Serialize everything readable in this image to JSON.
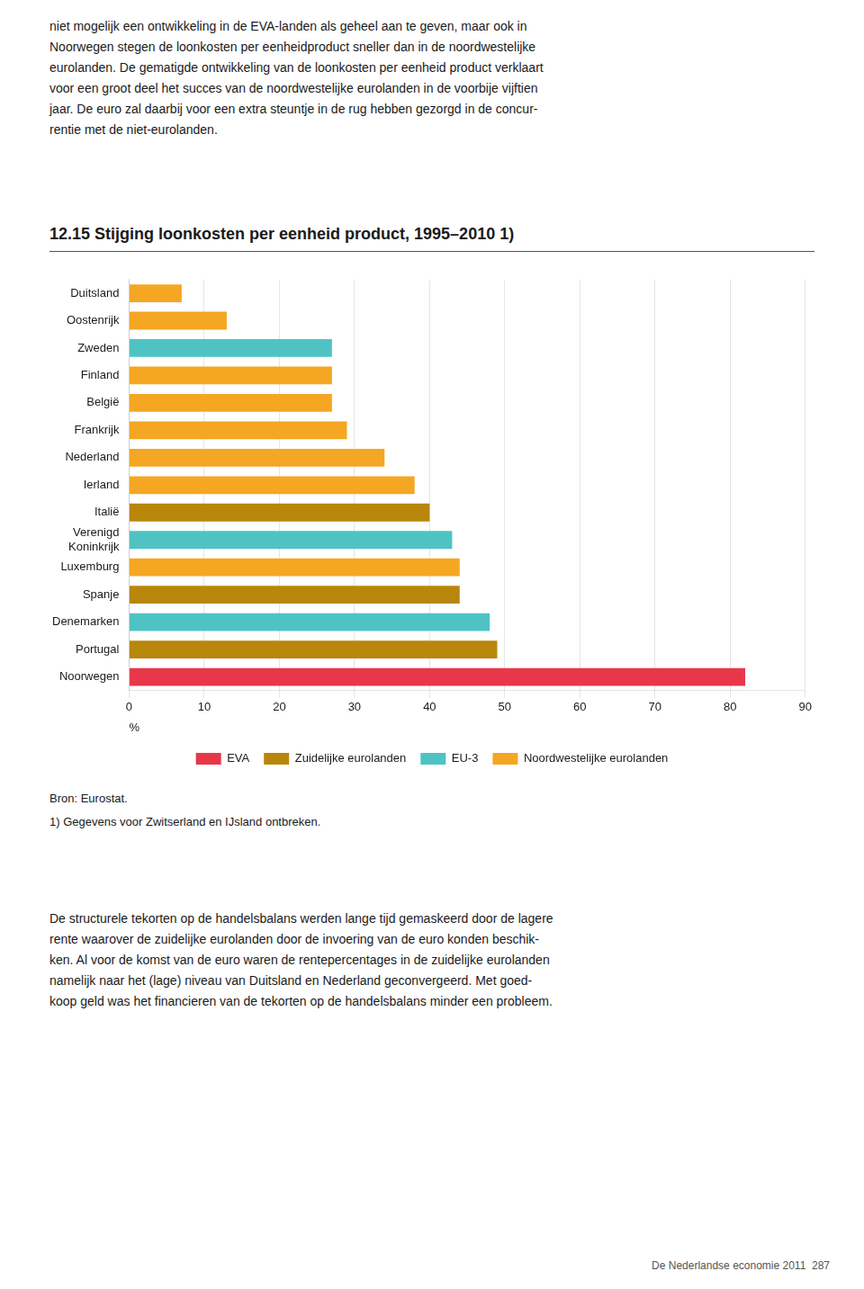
{
  "chart_data": {
    "type": "bar",
    "orientation": "horizontal",
    "title": "12.15 Stijging loonkosten per eenheid product, 1995–2010 1)",
    "categories": [
      "Duitsland",
      "Oostenrijk",
      "Zweden",
      "Finland",
      "België",
      "Frankrijk",
      "Nederland",
      "Ierland",
      "Italië",
      "Verenigd\nKoninkrijk",
      "Luxemburg",
      "Spanje",
      "Denemarken",
      "Portugal",
      "Noorwegen"
    ],
    "series": [
      {
        "name": "EVA",
        "color": "#e8374a",
        "values": [
          null,
          null,
          null,
          null,
          null,
          null,
          null,
          null,
          null,
          null,
          null,
          null,
          null,
          null,
          82
        ]
      },
      {
        "name": "Zuidelijke eurolanden",
        "color": "#b8860b",
        "values": [
          null,
          null,
          null,
          null,
          null,
          null,
          null,
          null,
          40,
          null,
          null,
          44,
          null,
          49,
          null
        ]
      },
      {
        "name": "EU-3",
        "color": "#4fc3c3",
        "values": [
          null,
          null,
          27,
          null,
          null,
          null,
          null,
          null,
          null,
          43,
          null,
          null,
          48,
          null,
          null
        ]
      },
      {
        "name": "Noordwestelijke eurolanden",
        "color": "#f5a623",
        "values": [
          7,
          13,
          null,
          27,
          27,
          29,
          34,
          38,
          null,
          null,
          44,
          null,
          null,
          null,
          null
        ]
      }
    ],
    "xlabel": "%",
    "xlim": [
      0,
      90
    ],
    "xticks": [
      0,
      10,
      20,
      30,
      40,
      50,
      60,
      70,
      80,
      90
    ],
    "grid": true,
    "legend": "bottom",
    "annotations": [
      "niet mogelijk een ontwikkeling in de EVA-landen als geheel aan te geven, maar ook in\nNoorwegen stegen de loonkosten per eenheidproduct sneller dan in de noordwestelijke\neurolanden. De gematigde ontwikkeling van de loonkosten per eenheid product verklaart\nvoor een groot deel het succes van de noordwestelijke eurolanden in de voorbije vijftien\njaar. De euro zal daarbij voor een extra steuntje in de rug hebben gezorgd in de concur-\nrentie met de niet-eurolanden.",
      "Bron: Eurostat.",
      "1) Gegevens voor Zwitserland en IJsland ontbreken.",
      "De structurele tekorten op de handelsbalans werden lange tijd gemaskeerd door de lagere\nrente waarover de zuidelijke eurolanden door de invoering van de euro konden beschik-\nken. Al voor de komst van de euro waren de rentepercentages in de zuidelijke eurolanden\nnamelijk naar het (lage) niveau van Duitsland en Nederland geconvergeerd. Met goed-\nkoop geld was het financieren van de tekorten op de handelsbalans minder een probleem.",
      "De Nederlandse economie 2011  287"
    ]
  }
}
